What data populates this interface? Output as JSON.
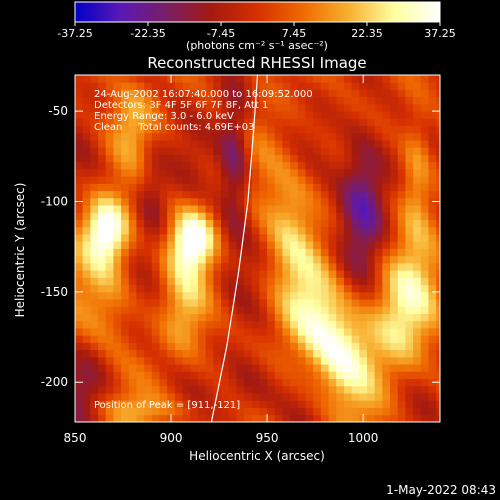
{
  "chart_data": {
    "type": "heatmap",
    "title": "Reconstructed RHESSI Image",
    "xlabel": "Heliocentric X (arcsec)",
    "ylabel": "Heliocentric Y (arcsec)",
    "xlim": [
      850,
      1040
    ],
    "ylim": [
      -222,
      -30
    ],
    "x_ticks": [
      850,
      900,
      950,
      1000
    ],
    "y_ticks": [
      -50,
      -100,
      -150,
      -200
    ],
    "colorbar": {
      "ticks": [
        "-37.25",
        "-22.35",
        "-7.45",
        "7.45",
        "22.35",
        "37.25"
      ],
      "range": [
        -37.25,
        37.25
      ],
      "unit_label": "(photons cm⁻² s⁻¹ asec⁻²)",
      "colors": [
        "#0000c8",
        "#5a18b4",
        "#7a1e66",
        "#a41a10",
        "#d63000",
        "#f06a00",
        "#f8b030",
        "#ffffa0",
        "#ffffff"
      ]
    },
    "annotations": [
      "24-Aug-2002 16:07:40.000 to 16:09:52.000",
      "Detectors: 3F 4F 5F 6F 7F 8F, Att 1",
      "Energy Range: 3.0 - 6.0 keV",
      "Clean     Total counts: 4.69E+03"
    ],
    "peak_label": "Position of Peak = [911,-121]",
    "limb_curve": [
      [
        945,
        -30
      ],
      [
        943,
        -60
      ],
      [
        940,
        -100
      ],
      [
        935,
        -140
      ],
      [
        929,
        -180
      ],
      [
        921,
        -222
      ]
    ],
    "sources": [
      {
        "x": 866,
        "y": -116,
        "amp": 37,
        "sx": 8,
        "sy": 13
      },
      {
        "x": 911,
        "y": -121,
        "amp": 37,
        "sx": 8,
        "sy": 12
      },
      {
        "x": 869,
        "y": -150,
        "amp": 14,
        "sx": 10,
        "sy": 22
      },
      {
        "x": 907,
        "y": -160,
        "amp": 13,
        "sx": 8,
        "sy": 20
      },
      {
        "x": 880,
        "y": -55,
        "amp": 12,
        "sx": 8,
        "sy": 14
      },
      {
        "x": 962,
        "y": -110,
        "amp": 18,
        "sx": 10,
        "sy": 30
      },
      {
        "x": 1028,
        "y": -85,
        "amp": 20,
        "sx": 6,
        "sy": 25
      },
      {
        "x": 990,
        "y": -185,
        "amp": 26,
        "sx": 12,
        "sy": 20
      },
      {
        "x": 1020,
        "y": -160,
        "amp": 24,
        "sx": 12,
        "sy": 25
      },
      {
        "x": 975,
        "y": -165,
        "amp": 18,
        "sx": 12,
        "sy": 20
      },
      {
        "x": 890,
        "y": -215,
        "amp": 10,
        "sx": 20,
        "sy": 6
      },
      {
        "x": 933,
        "y": -75,
        "amp": -24,
        "sx": 6,
        "sy": 30
      },
      {
        "x": 1000,
        "y": -95,
        "amp": -30,
        "sx": 9,
        "sy": 28
      },
      {
        "x": 890,
        "y": -95,
        "amp": -14,
        "sx": 6,
        "sy": 20
      },
      {
        "x": 940,
        "y": -205,
        "amp": -16,
        "sx": 10,
        "sy": 15
      },
      {
        "x": 855,
        "y": -200,
        "amp": -12,
        "sx": 10,
        "sy": 15
      }
    ]
  },
  "footer": {
    "date": "1-May-2022 08:43"
  }
}
